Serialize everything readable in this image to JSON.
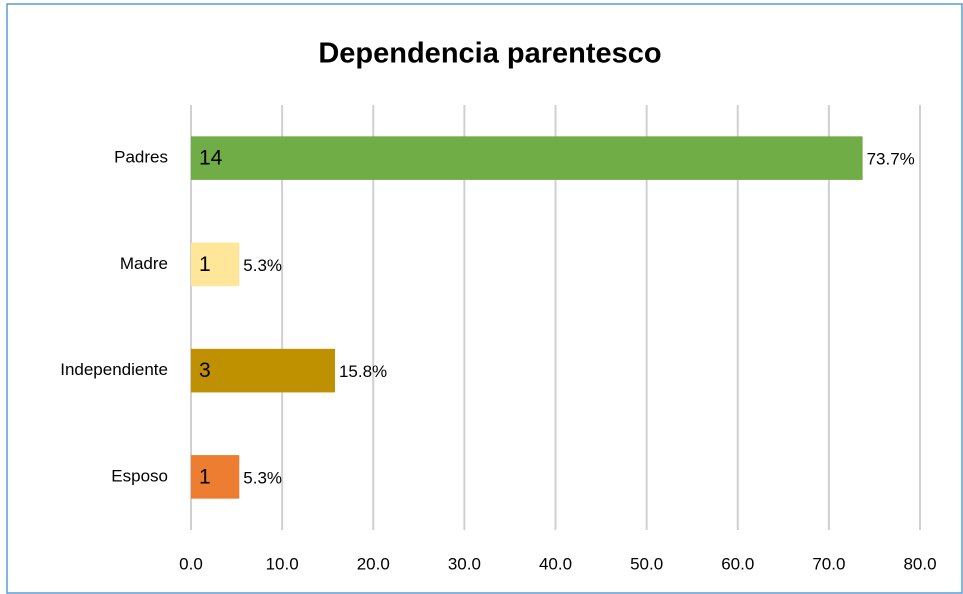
{
  "chart_data": {
    "type": "hbar",
    "title": "Dependencia parentesco",
    "categories": [
      "Padres",
      "Madre",
      "Independiente",
      "Esposo"
    ],
    "values": [
      73.7,
      5.3,
      15.8,
      5.3
    ],
    "value_labels": [
      "73.7%",
      "5.3%",
      "15.8%",
      "5.3%"
    ],
    "counts": [
      14,
      1,
      3,
      1
    ],
    "colors": [
      "#70ad47",
      "#ffe699",
      "#bf9000",
      "#ed7d31"
    ],
    "xlim": [
      0,
      80
    ],
    "xticks": [
      {
        "value": 0,
        "label": "0.0"
      },
      {
        "value": 10,
        "label": "10.0"
      },
      {
        "value": 20,
        "label": "20.0"
      },
      {
        "value": 30,
        "label": "30.0"
      },
      {
        "value": 40,
        "label": "40.0"
      },
      {
        "value": 50,
        "label": "50.0"
      },
      {
        "value": 60,
        "label": "60.0"
      },
      {
        "value": 70,
        "label": "70.0"
      },
      {
        "value": 80,
        "label": "80.0"
      }
    ],
    "grid": true
  }
}
